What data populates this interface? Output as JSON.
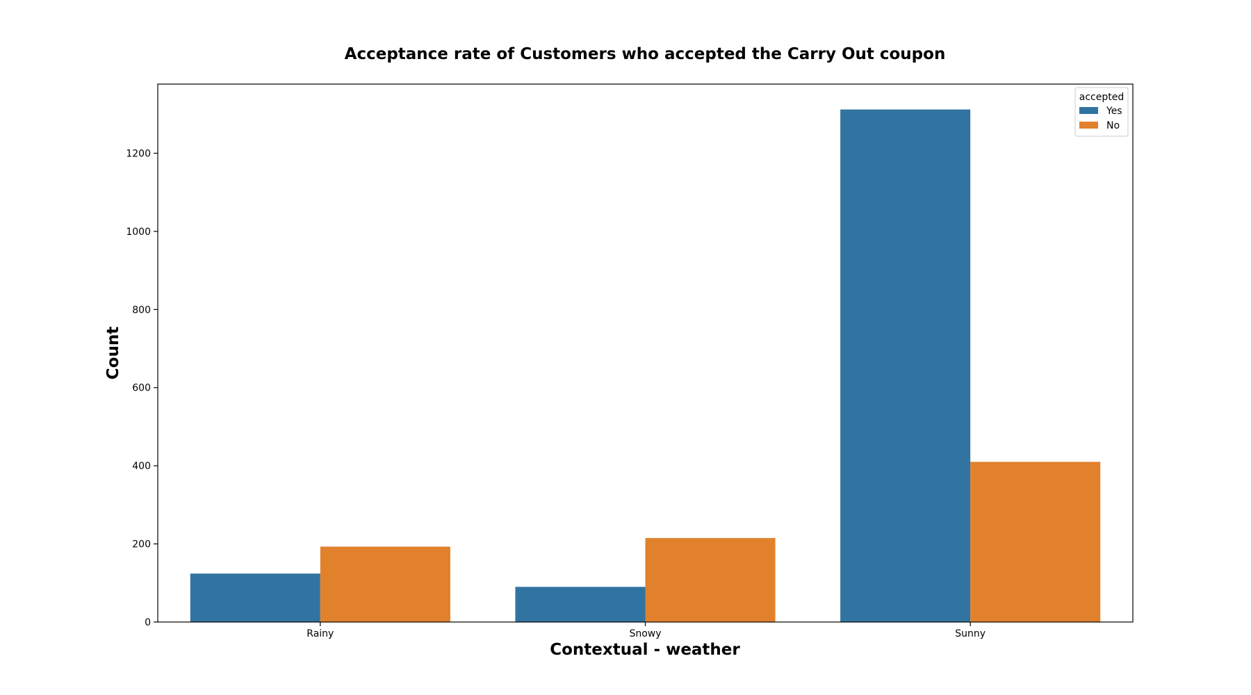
{
  "chart_data": {
    "type": "bar",
    "title": "Acceptance rate of Customers who accepted the Carry Out coupon",
    "xlabel": "Contextual - weather",
    "ylabel": "Count",
    "categories": [
      "Rainy",
      "Snowy",
      "Sunny"
    ],
    "series": [
      {
        "name": "Yes",
        "color": "#3274a1",
        "values": [
          124,
          90,
          1312
        ]
      },
      {
        "name": "No",
        "color": "#e1812c",
        "values": [
          193,
          215,
          410
        ]
      }
    ],
    "yticks": [
      0,
      200,
      400,
      600,
      800,
      1000,
      1200
    ],
    "ylim": [
      0,
      1377
    ],
    "grid": false,
    "legend": {
      "title": "accepted",
      "placement": "top-right"
    }
  }
}
